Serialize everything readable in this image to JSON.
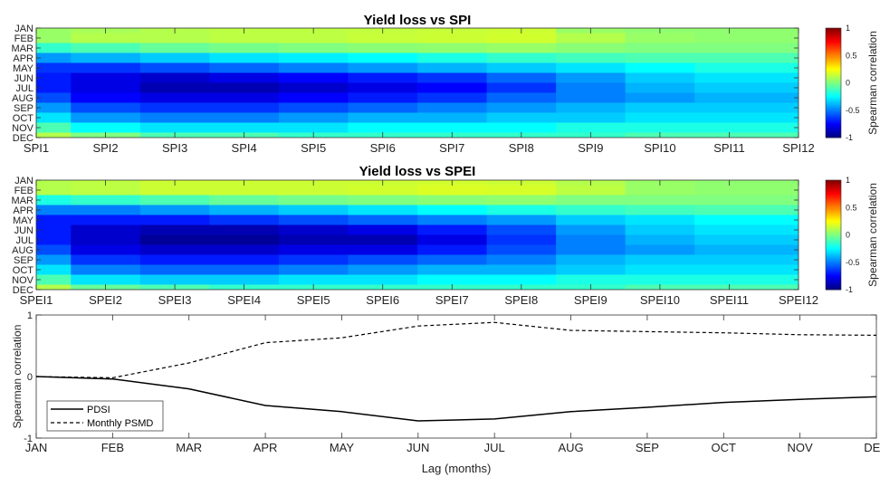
{
  "chart_data": [
    {
      "type": "heatmap",
      "title": "Yield loss vs SPI",
      "x_categories": [
        "SPI1",
        "SPI2",
        "SPI3",
        "SPI4",
        "SPI5",
        "SPI6",
        "SPI7",
        "SPI8",
        "SPI9",
        "SPI10",
        "SPI11",
        "SPI12"
      ],
      "y_categories": [
        "JAN",
        "FEB",
        "MAR",
        "APR",
        "MAY",
        "JUN",
        "JUL",
        "AUG",
        "SEP",
        "OCT",
        "NOV",
        "DEC"
      ],
      "values": [
        [
          0.05,
          0.08,
          0.1,
          0.12,
          0.12,
          0.13,
          0.14,
          0.15,
          0.05,
          0.03,
          0.03,
          0.03
        ],
        [
          0.05,
          0.1,
          0.1,
          0.12,
          0.12,
          0.14,
          0.15,
          0.16,
          0.1,
          0.05,
          0.03,
          0.03
        ],
        [
          -0.15,
          -0.1,
          -0.05,
          -0.02,
          0.0,
          0.02,
          0.03,
          0.05,
          0.02,
          0.0,
          0.0,
          0.0
        ],
        [
          -0.45,
          -0.4,
          -0.35,
          -0.3,
          -0.28,
          -0.25,
          -0.2,
          -0.15,
          -0.12,
          -0.1,
          -0.1,
          -0.1
        ],
        [
          -0.65,
          -0.65,
          -0.6,
          -0.55,
          -0.5,
          -0.45,
          -0.4,
          -0.35,
          -0.3,
          -0.25,
          -0.2,
          -0.2
        ],
        [
          -0.7,
          -0.8,
          -0.85,
          -0.8,
          -0.75,
          -0.7,
          -0.65,
          -0.55,
          -0.45,
          -0.35,
          -0.3,
          -0.3
        ],
        [
          -0.7,
          -0.8,
          -0.9,
          -0.9,
          -0.85,
          -0.8,
          -0.75,
          -0.65,
          -0.5,
          -0.4,
          -0.35,
          -0.35
        ],
        [
          -0.6,
          -0.75,
          -0.8,
          -0.8,
          -0.75,
          -0.7,
          -0.65,
          -0.55,
          -0.5,
          -0.45,
          -0.4,
          -0.4
        ],
        [
          -0.45,
          -0.6,
          -0.65,
          -0.65,
          -0.6,
          -0.55,
          -0.5,
          -0.45,
          -0.4,
          -0.35,
          -0.35,
          -0.35
        ],
        [
          -0.3,
          -0.45,
          -0.5,
          -0.5,
          -0.45,
          -0.4,
          -0.4,
          -0.35,
          -0.35,
          -0.3,
          -0.3,
          -0.3
        ],
        [
          -0.1,
          -0.25,
          -0.3,
          -0.3,
          -0.3,
          -0.25,
          -0.25,
          -0.25,
          -0.2,
          -0.2,
          -0.2,
          -0.2
        ],
        [
          0.1,
          0.0,
          -0.1,
          -0.1,
          -0.15,
          -0.15,
          -0.15,
          -0.15,
          -0.15,
          -0.1,
          -0.1,
          -0.1
        ]
      ],
      "colorbar": {
        "label": "Spearman correlation",
        "range": [
          -1,
          1
        ],
        "ticks": [
          "-1",
          "-0.5",
          "0",
          "0.5",
          "1"
        ],
        "colormap": "jet"
      }
    },
    {
      "type": "heatmap",
      "title": "Yield loss vs SPEI",
      "x_categories": [
        "SPEI1",
        "SPEI2",
        "SPEI3",
        "SPEI4",
        "SPEI5",
        "SPEI6",
        "SPEI7",
        "SPEI8",
        "SPEI9",
        "SPEI10",
        "SPEI11",
        "SPEI12"
      ],
      "y_categories": [
        "JAN",
        "FEB",
        "MAR",
        "APR",
        "MAY",
        "JUN",
        "JUL",
        "AUG",
        "SEP",
        "OCT",
        "NOV",
        "DEC"
      ],
      "values": [
        [
          0.1,
          0.12,
          0.15,
          0.15,
          0.15,
          0.15,
          0.16,
          0.15,
          0.1,
          0.05,
          0.03,
          0.03
        ],
        [
          0.1,
          0.12,
          0.15,
          0.15,
          0.15,
          0.16,
          0.18,
          0.17,
          0.12,
          0.05,
          0.03,
          0.03
        ],
        [
          -0.2,
          -0.15,
          -0.1,
          -0.05,
          -0.02,
          0.0,
          0.02,
          0.03,
          0.0,
          0.0,
          0.0,
          0.0
        ],
        [
          -0.5,
          -0.5,
          -0.45,
          -0.4,
          -0.35,
          -0.3,
          -0.25,
          -0.2,
          -0.15,
          -0.12,
          -0.1,
          -0.1
        ],
        [
          -0.7,
          -0.7,
          -0.7,
          -0.65,
          -0.6,
          -0.55,
          -0.5,
          -0.45,
          -0.35,
          -0.3,
          -0.25,
          -0.25
        ],
        [
          -0.7,
          -0.85,
          -0.9,
          -0.9,
          -0.85,
          -0.8,
          -0.7,
          -0.6,
          -0.45,
          -0.35,
          -0.3,
          -0.3
        ],
        [
          -0.7,
          -0.85,
          -0.95,
          -0.95,
          -0.9,
          -0.9,
          -0.8,
          -0.65,
          -0.5,
          -0.4,
          -0.35,
          -0.35
        ],
        [
          -0.6,
          -0.8,
          -0.85,
          -0.85,
          -0.8,
          -0.8,
          -0.7,
          -0.6,
          -0.5,
          -0.45,
          -0.4,
          -0.4
        ],
        [
          -0.45,
          -0.65,
          -0.7,
          -0.7,
          -0.65,
          -0.6,
          -0.55,
          -0.5,
          -0.4,
          -0.35,
          -0.35,
          -0.35
        ],
        [
          -0.3,
          -0.5,
          -0.55,
          -0.55,
          -0.5,
          -0.45,
          -0.4,
          -0.4,
          -0.35,
          -0.3,
          -0.3,
          -0.3
        ],
        [
          -0.1,
          -0.3,
          -0.35,
          -0.35,
          -0.3,
          -0.3,
          -0.25,
          -0.25,
          -0.2,
          -0.2,
          -0.2,
          -0.2
        ],
        [
          0.1,
          -0.05,
          -0.1,
          -0.15,
          -0.15,
          -0.15,
          -0.15,
          -0.15,
          -0.15,
          -0.1,
          -0.1,
          -0.1
        ]
      ],
      "colorbar": {
        "label": "Spearman correlation",
        "range": [
          -1,
          1
        ],
        "ticks": [
          "-1",
          "-0.5",
          "0",
          "0.5",
          "1"
        ],
        "colormap": "jet"
      }
    },
    {
      "type": "line",
      "xlabel": "Lag (months)",
      "ylabel": "Spearman correlation",
      "x": [
        "JAN",
        "FEB",
        "MAR",
        "APR",
        "MAY",
        "JUN",
        "JUL",
        "AUG",
        "SEP",
        "OCT",
        "NOV",
        "DEC"
      ],
      "ylim": [
        -1,
        1
      ],
      "yticks": [
        "-1",
        "0",
        "1"
      ],
      "series": [
        {
          "name": "PDSI",
          "style": "solid",
          "values": [
            0.0,
            -0.04,
            -0.2,
            -0.47,
            -0.57,
            -0.72,
            -0.69,
            -0.57,
            -0.5,
            -0.42,
            -0.37,
            -0.33
          ]
        },
        {
          "name": "Monthly PSMD",
          "style": "dashed",
          "values": [
            0.0,
            -0.02,
            0.22,
            0.55,
            0.63,
            0.82,
            0.88,
            0.75,
            0.73,
            0.71,
            0.68,
            0.67
          ]
        }
      ],
      "legend_position": "bottom-left"
    }
  ]
}
